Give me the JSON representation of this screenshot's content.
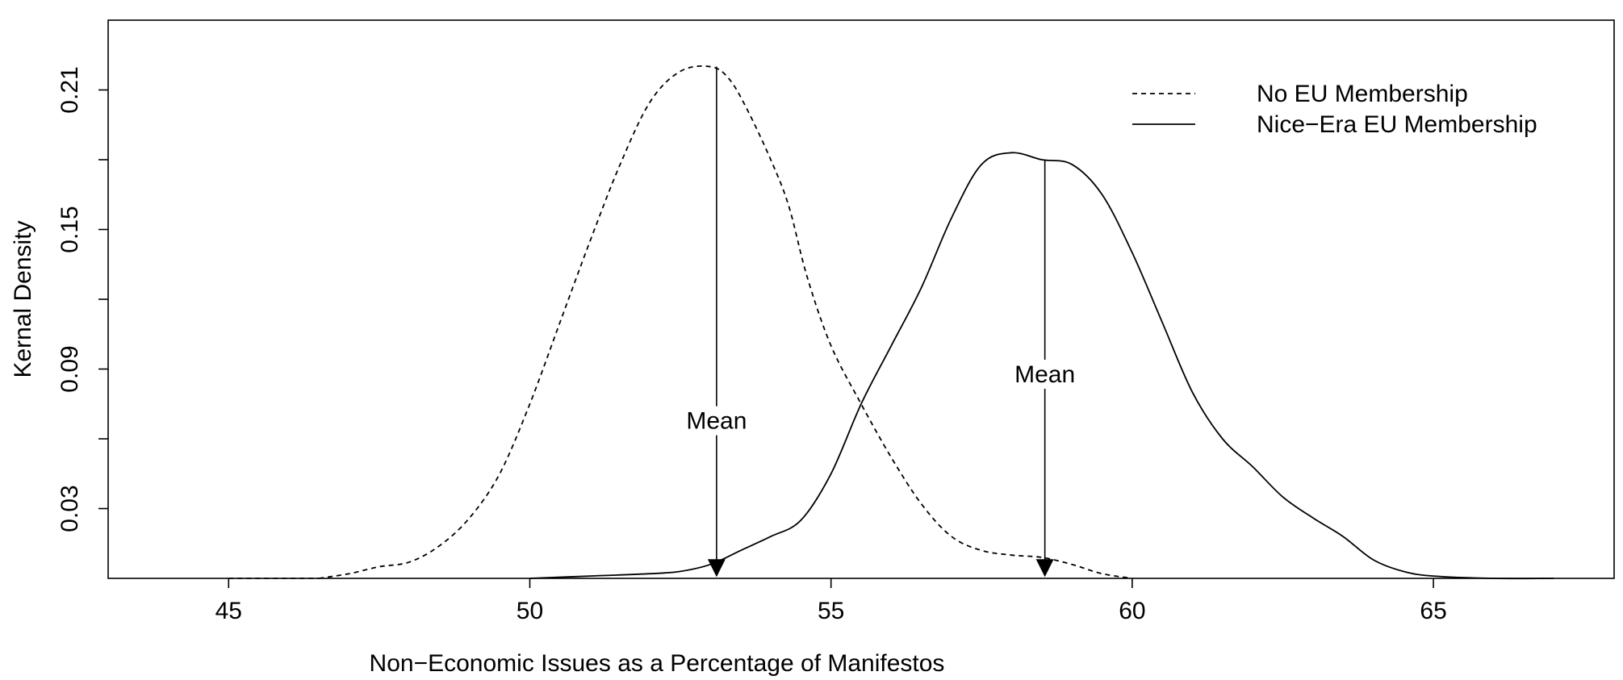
{
  "chart_data": {
    "type": "line",
    "title": "",
    "xlabel": "Non−Economic Issues as a Percentage of Manifestos",
    "ylabel": "Kernal Density",
    "xlim": [
      43,
      68
    ],
    "ylim": [
      0,
      0.24
    ],
    "x_ticks": [
      45,
      50,
      55,
      60,
      65
    ],
    "x_tick_labels": [
      "45",
      "50",
      "55",
      "60",
      "65"
    ],
    "y_ticks": [
      0.03,
      0.06,
      0.09,
      0.12,
      0.15,
      0.18,
      0.21
    ],
    "y_tick_labels": [
      "0.03",
      "",
      "0.09",
      "",
      "0.15",
      "",
      "0.21"
    ],
    "grid": false,
    "legend_position": "top-right",
    "series": [
      {
        "name": "No EU Membership",
        "line_style": "dashed",
        "color": "#000000",
        "x": [
          46.5,
          47.0,
          47.5,
          48.0,
          48.5,
          49.0,
          49.5,
          50.0,
          50.5,
          51.0,
          51.5,
          52.0,
          52.5,
          53.0,
          53.3,
          53.6,
          54.0,
          54.3,
          54.6,
          55.0,
          55.5,
          56.0,
          56.5,
          57.0,
          57.5,
          58.0,
          58.5,
          59.0,
          59.5,
          60.0
        ],
        "y": [
          0.0,
          0.002,
          0.005,
          0.007,
          0.014,
          0.026,
          0.045,
          0.075,
          0.11,
          0.145,
          0.178,
          0.205,
          0.218,
          0.22,
          0.215,
          0.202,
          0.18,
          0.16,
          0.13,
          0.1,
          0.075,
          0.052,
          0.032,
          0.018,
          0.012,
          0.01,
          0.009,
          0.006,
          0.002,
          0.0
        ]
      },
      {
        "name": "Nice−Era EU Membership",
        "line_style": "solid",
        "color": "#000000",
        "x": [
          50.0,
          51.0,
          52.0,
          52.5,
          53.0,
          53.5,
          54.0,
          54.5,
          55.0,
          55.5,
          56.0,
          56.5,
          57.0,
          57.5,
          58.0,
          58.5,
          59.0,
          59.5,
          60.0,
          60.5,
          61.0,
          61.5,
          62.0,
          62.5,
          63.0,
          63.5,
          64.0,
          64.5,
          65.0,
          66.0,
          67.0
        ],
        "y": [
          0.0,
          0.001,
          0.002,
          0.003,
          0.006,
          0.012,
          0.018,
          0.025,
          0.045,
          0.075,
          0.1,
          0.125,
          0.155,
          0.178,
          0.183,
          0.18,
          0.178,
          0.165,
          0.14,
          0.11,
          0.08,
          0.06,
          0.048,
          0.035,
          0.026,
          0.018,
          0.008,
          0.003,
          0.001,
          0.0,
          0.0
        ]
      }
    ],
    "annotations": [
      {
        "text": "Mean",
        "x": 53.1,
        "y_label": 0.065,
        "y_top": 0.22,
        "y_arrow": 0.002
      },
      {
        "text": "Mean",
        "x": 58.55,
        "y_label": 0.085,
        "y_top": 0.18,
        "y_arrow": 0.002
      }
    ]
  }
}
